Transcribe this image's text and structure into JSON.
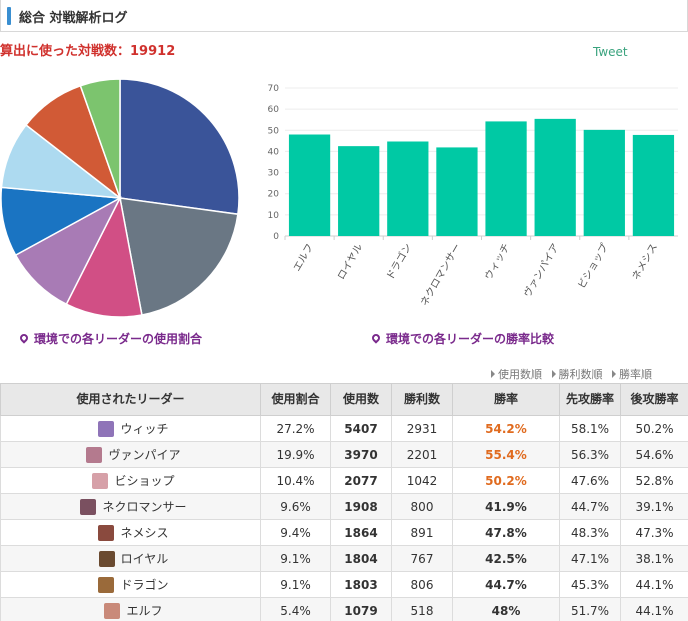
{
  "header": {
    "title": "総合 対戦解析ログ"
  },
  "total": {
    "label": "算出に使った対戦数：",
    "value": "19912"
  },
  "tweet": "Tweet",
  "captions": {
    "pie": "環境での各リーダーの使用割合",
    "bar": "環境での各リーダーの勝率比較"
  },
  "sort_links": [
    "使用数順",
    "勝利数順",
    "勝率順"
  ],
  "table": {
    "headers": [
      "使用されたリーダー",
      "使用割合",
      "使用数",
      "勝利数",
      "勝率",
      "先攻勝率",
      "後攻勝率"
    ],
    "rows": [
      {
        "leader": "ウィッチ",
        "share": "27.2%",
        "uses": "5407",
        "wins": "2931",
        "rate": "54.2%",
        "first": "58.1%",
        "second": "50.2%",
        "highlight": true,
        "avatar": "#8f74b8"
      },
      {
        "leader": "ヴァンパイア",
        "share": "19.9%",
        "uses": "3970",
        "wins": "2201",
        "rate": "55.4%",
        "first": "56.3%",
        "second": "54.6%",
        "highlight": true,
        "avatar": "#b47a8e"
      },
      {
        "leader": "ビショップ",
        "share": "10.4%",
        "uses": "2077",
        "wins": "1042",
        "rate": "50.2%",
        "first": "47.6%",
        "second": "52.8%",
        "highlight": true,
        "avatar": "#d6a0a8"
      },
      {
        "leader": "ネクロマンサー",
        "share": "9.6%",
        "uses": "1908",
        "wins": "800",
        "rate": "41.9%",
        "first": "44.7%",
        "second": "39.1%",
        "highlight": false,
        "avatar": "#7a5060"
      },
      {
        "leader": "ネメシス",
        "share": "9.4%",
        "uses": "1864",
        "wins": "891",
        "rate": "47.8%",
        "first": "48.3%",
        "second": "47.3%",
        "highlight": false,
        "avatar": "#8a4a3e"
      },
      {
        "leader": "ロイヤル",
        "share": "9.1%",
        "uses": "1804",
        "wins": "767",
        "rate": "42.5%",
        "first": "47.1%",
        "second": "38.1%",
        "highlight": false,
        "avatar": "#6a4a30"
      },
      {
        "leader": "ドラゴン",
        "share": "9.1%",
        "uses": "1803",
        "wins": "806",
        "rate": "44.7%",
        "first": "45.3%",
        "second": "44.1%",
        "highlight": false,
        "avatar": "#9a6a3a"
      },
      {
        "leader": "エルフ",
        "share": "5.4%",
        "uses": "1079",
        "wins": "518",
        "rate": "48%",
        "first": "51.7%",
        "second": "44.1%",
        "highlight": false,
        "avatar": "#c98a7a"
      }
    ]
  },
  "chart_data": [
    {
      "type": "pie",
      "title": "環境での各リーダーの使用割合",
      "slices": [
        {
          "label": "ウィッチ",
          "value": 27.2,
          "color": "#3a5499"
        },
        {
          "label": "ヴァンパイア",
          "value": 19.9,
          "color": "#6a7784"
        },
        {
          "label": "ビショップ",
          "value": 10.4,
          "color": "#d14f85"
        },
        {
          "label": "ネクロマンサー",
          "value": 9.6,
          "color": "#a87bb5"
        },
        {
          "label": "ネメシス",
          "value": 9.4,
          "color": "#1a74c2"
        },
        {
          "label": "ロイヤル",
          "value": 9.1,
          "color": "#addaf0"
        },
        {
          "label": "ドラゴン",
          "value": 9.1,
          "color": "#d15a36"
        },
        {
          "label": "エルフ",
          "value": 5.4,
          "color": "#7cc46e"
        }
      ]
    },
    {
      "type": "bar",
      "title": "環境での各リーダーの勝率比較",
      "categories": [
        "エルフ",
        "ロイヤル",
        "ドラゴン",
        "ネクロマンサー",
        "ウィッチ",
        "ヴァンパイア",
        "ビショップ",
        "ネメシス"
      ],
      "values": [
        48,
        42.5,
        44.7,
        41.9,
        54.2,
        55.4,
        50.2,
        47.8
      ],
      "ylim": [
        0,
        70
      ],
      "yticks": [
        0,
        10,
        20,
        30,
        40,
        50,
        60,
        70
      ],
      "color": "#00c9a4",
      "grid": true
    }
  ]
}
